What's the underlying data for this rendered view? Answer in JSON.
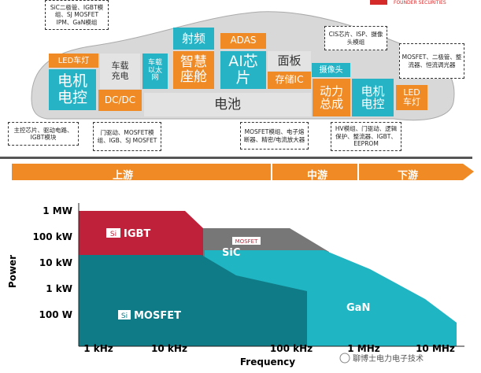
{
  "header": {
    "logo": "FOUNDER SECURITIES"
  },
  "car": {
    "blocks": [
      "LED车灯",
      "电机电控",
      "车载充电",
      "DC/DC",
      "车载以太网",
      "射频",
      "智慧座舱",
      "ADAS",
      "AI芯片",
      "面板",
      "存储IC",
      "电池",
      "摄像头",
      "动力总成",
      "电机电控",
      "LED车灯"
    ],
    "notes": [
      "SiC二极管、IGBT模组、SJ MOSFET IPM、GaN模组",
      "CIS芯片、ISP、摄像头模组",
      "MOSFET、二极管、整流器、恒流调光器",
      "主控芯片、驱动电路、IGBT模块",
      "门驱动、MOSFET模组、IGB、SJ MOSFET",
      "MOSFET模组、电子熔断器、精密/电流放大器",
      "HV模组、门驱动、逻辑保护、整流器、IGBT、EEPROM"
    ]
  },
  "chain": {
    "stages": [
      "上游",
      "中游",
      "下游"
    ]
  },
  "chart": {
    "y_label": "Power",
    "x_label": "Frequency",
    "yticks": [
      "1 MW",
      "100 kW",
      "10 kW",
      "1 kW",
      "100 W"
    ],
    "xticks": [
      "1 kHz",
      "10 kHz",
      "100 kHz",
      "1 MHz",
      "10 MHz"
    ],
    "regions": {
      "igbt_badge": "Si",
      "igbt": "IGBT",
      "sic": "SiC",
      "sic_badge": "MOSFET",
      "gan": "GaN",
      "mosfet_badge": "Si",
      "mosfet": "MOSFET"
    }
  },
  "watermark": "聊博士电力电子技术"
}
